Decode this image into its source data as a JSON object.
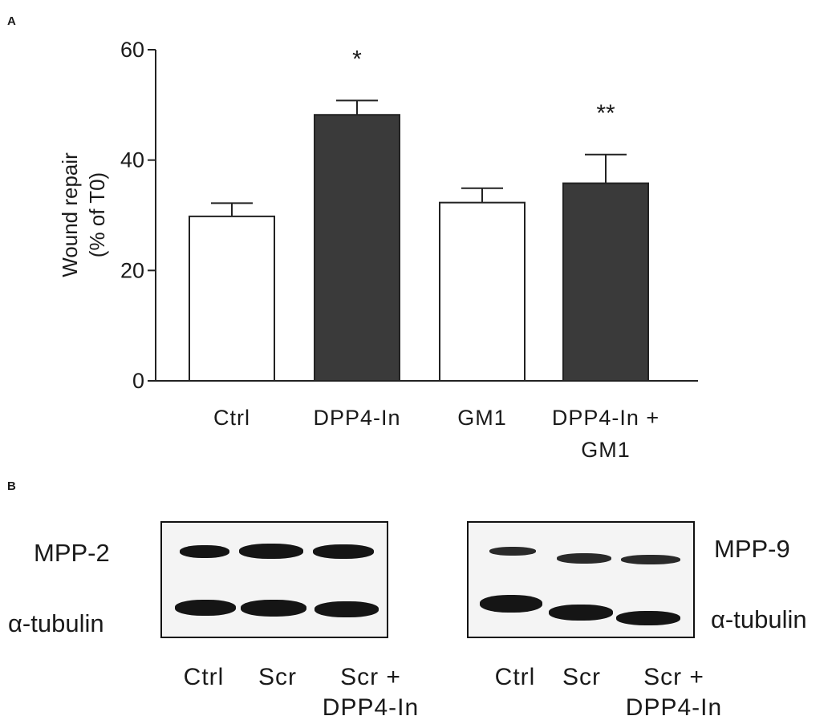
{
  "panel_a": {
    "letter": "A",
    "chart_data": {
      "type": "bar",
      "ylabel": "Wound repair\n(% of T0)",
      "ylim": [
        0,
        60
      ],
      "yticks": [
        0,
        20,
        40,
        60
      ],
      "categories": [
        "Ctrl",
        "DPP4-In",
        "GM1",
        "DPP4-In +\nGM1"
      ],
      "values": [
        29.8,
        48.2,
        32.3,
        35.8
      ],
      "errors": [
        2.4,
        2.6,
        2.6,
        5.2
      ],
      "bar_fill": [
        "#ffffff",
        "#3a3a3a",
        "#ffffff",
        "#3a3a3a"
      ],
      "annotations": [
        "",
        "*",
        "",
        "**"
      ]
    }
  },
  "panel_b": {
    "letter": "B",
    "left_blot": {
      "top_label": "MPP-2",
      "bottom_label": "α-tubulin",
      "lanes": [
        "Ctrl",
        "Scr",
        "Scr +\nDPP4-In"
      ]
    },
    "right_blot": {
      "top_label": "MPP-9",
      "bottom_label": "α-tubulin",
      "lanes": [
        "Ctrl",
        "Scr",
        "Scr +\nDPP4-In"
      ]
    }
  }
}
